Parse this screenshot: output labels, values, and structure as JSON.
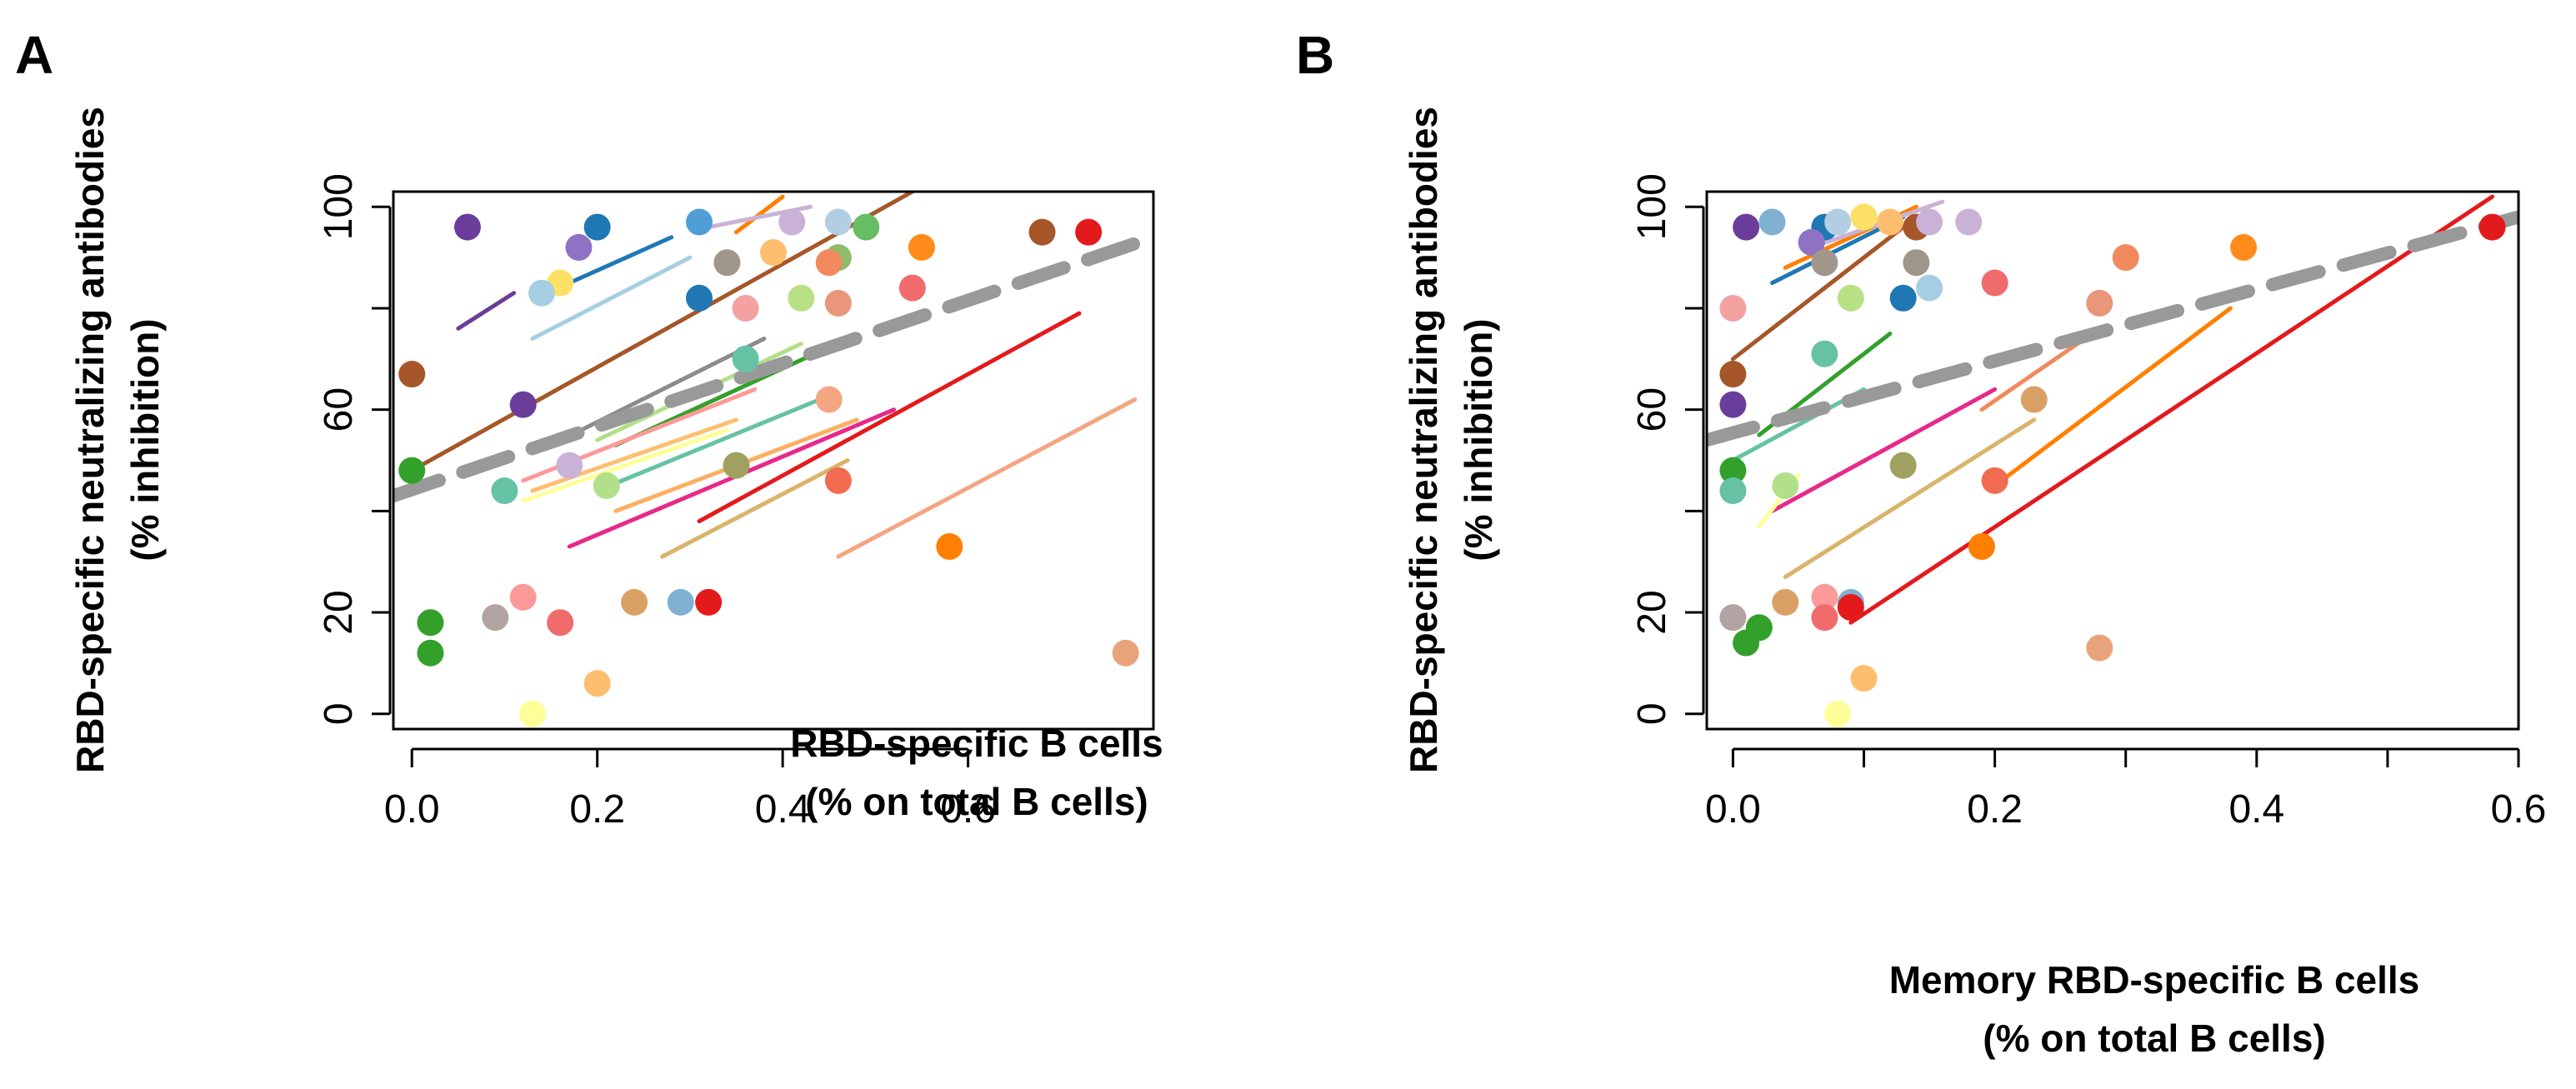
{
  "chart_data": [
    {
      "panel": "A",
      "type": "scatter",
      "xlabel_line1": "RBD-specific B cells",
      "xlabel_line2": "(% on total B cells)",
      "ylabel_line1": "RBD-specific neutralizing antibodies",
      "ylabel_line2": "(% inhibition)",
      "xlim": [
        -0.02,
        0.8
      ],
      "ylim": [
        -3,
        103
      ],
      "xticks": [
        0.0,
        0.2,
        0.4,
        0.6
      ],
      "xtick_labels": [
        "0.0",
        "0.2",
        "0.4",
        "0.6"
      ],
      "xtick_marks": [
        0.0,
        0.2,
        0.4,
        0.6
      ],
      "yticks": [
        0,
        20,
        60,
        100
      ],
      "ytick_labels": [
        "0",
        "20",
        "60",
        "100"
      ],
      "ytick_marks": [
        0,
        20,
        40,
        60,
        80,
        100
      ],
      "overall_fit": {
        "x1": -0.02,
        "y1": 43,
        "x2": 0.8,
        "y2": 94,
        "color": "#999999"
      },
      "fit_lines": [
        {
          "x1": 0.05,
          "y1": 76,
          "x2": 0.11,
          "y2": 83,
          "color": "#6a3d9a"
        },
        {
          "x1": 0.17,
          "y1": 85,
          "x2": 0.28,
          "y2": 94,
          "color": "#1f78b4"
        },
        {
          "x1": 0.13,
          "y1": 74,
          "x2": 0.3,
          "y2": 90,
          "color": "#a6cee3"
        },
        {
          "x1": 0.0,
          "y1": 48,
          "x2": 0.54,
          "y2": 103,
          "color": "#a65628"
        },
        {
          "x1": 0.35,
          "y1": 95,
          "x2": 0.4,
          "y2": 102,
          "color": "#ff7f00"
        },
        {
          "x1": 0.32,
          "y1": 96,
          "x2": 0.43,
          "y2": 100,
          "color": "#cab2d6"
        },
        {
          "x1": 0.15,
          "y1": 53,
          "x2": 0.38,
          "y2": 74,
          "color": "#8c8c8c"
        },
        {
          "x1": 0.2,
          "y1": 54,
          "x2": 0.42,
          "y2": 73,
          "color": "#b2df8a"
        },
        {
          "x1": 0.22,
          "y1": 53,
          "x2": 0.47,
          "y2": 74,
          "color": "#33a02c"
        },
        {
          "x1": 0.12,
          "y1": 46,
          "x2": 0.37,
          "y2": 64,
          "color": "#fb9a99"
        },
        {
          "x1": 0.2,
          "y1": 44,
          "x2": 0.44,
          "y2": 62,
          "color": "#66c2a5"
        },
        {
          "x1": 0.13,
          "y1": 44,
          "x2": 0.35,
          "y2": 58,
          "color": "#fdbf6f"
        },
        {
          "x1": 0.12,
          "y1": 42,
          "x2": 0.34,
          "y2": 56,
          "color": "#ffff99"
        },
        {
          "x1": 0.17,
          "y1": 33,
          "x2": 0.52,
          "y2": 60,
          "color": "#e7298a"
        },
        {
          "x1": 0.22,
          "y1": 40,
          "x2": 0.48,
          "y2": 58,
          "color": "#fdae61"
        },
        {
          "x1": 0.27,
          "y1": 31,
          "x2": 0.47,
          "y2": 50,
          "color": "#d9b46a"
        },
        {
          "x1": 0.31,
          "y1": 38,
          "x2": 0.72,
          "y2": 79,
          "color": "#e31a1c"
        },
        {
          "x1": 0.46,
          "y1": 31,
          "x2": 0.78,
          "y2": 62,
          "color": "#f4a582"
        }
      ],
      "points": [
        {
          "x": 0.06,
          "y": 96,
          "color": "#6a3d9a"
        },
        {
          "x": 0.2,
          "y": 96,
          "color": "#1f78b4"
        },
        {
          "x": 0.31,
          "y": 97,
          "color": "#4f9fd6"
        },
        {
          "x": 0.18,
          "y": 92,
          "color": "#8e72c4"
        },
        {
          "x": 0.16,
          "y": 85,
          "color": "#ffe066"
        },
        {
          "x": 0.14,
          "y": 83,
          "color": "#a6cee3"
        },
        {
          "x": 0.31,
          "y": 82,
          "color": "#1f78b4"
        },
        {
          "x": 0.34,
          "y": 89,
          "color": "#a0968c"
        },
        {
          "x": 0.39,
          "y": 91,
          "color": "#fdbf6f"
        },
        {
          "x": 0.41,
          "y": 97,
          "color": "#cab2d6"
        },
        {
          "x": 0.46,
          "y": 97,
          "color": "#b3cde3"
        },
        {
          "x": 0.46,
          "y": 90,
          "color": "#8fbc6a"
        },
        {
          "x": 0.49,
          "y": 96,
          "color": "#66bd63"
        },
        {
          "x": 0.45,
          "y": 89,
          "color": "#f08a5d"
        },
        {
          "x": 0.36,
          "y": 80,
          "color": "#f4a1a1"
        },
        {
          "x": 0.42,
          "y": 82,
          "color": "#b8e186"
        },
        {
          "x": 0.46,
          "y": 81,
          "color": "#e9967a"
        },
        {
          "x": 0.55,
          "y": 92,
          "color": "#ff8c1a"
        },
        {
          "x": 0.54,
          "y": 84,
          "color": "#f06b6b"
        },
        {
          "x": 0.68,
          "y": 95,
          "color": "#a65628"
        },
        {
          "x": 0.73,
          "y": 95,
          "color": "#e31a1c"
        },
        {
          "x": 0.0,
          "y": 67,
          "color": "#a65628"
        },
        {
          "x": 0.12,
          "y": 61,
          "color": "#6a3d9a"
        },
        {
          "x": 0.36,
          "y": 70,
          "color": "#66c2a5"
        },
        {
          "x": 0.45,
          "y": 62,
          "color": "#f4a582"
        },
        {
          "x": 0.0,
          "y": 48,
          "color": "#33a02c"
        },
        {
          "x": 0.1,
          "y": 44,
          "color": "#66c2a5"
        },
        {
          "x": 0.17,
          "y": 49,
          "color": "#cab2d6"
        },
        {
          "x": 0.21,
          "y": 45,
          "color": "#b2df8a"
        },
        {
          "x": 0.35,
          "y": 49,
          "color": "#a0a060"
        },
        {
          "x": 0.46,
          "y": 46,
          "color": "#f06b4f"
        },
        {
          "x": 0.58,
          "y": 33,
          "color": "#ff7f00"
        },
        {
          "x": 0.12,
          "y": 23,
          "color": "#fb9a99"
        },
        {
          "x": 0.09,
          "y": 19,
          "color": "#b3a3a3"
        },
        {
          "x": 0.02,
          "y": 18,
          "color": "#33a02c"
        },
        {
          "x": 0.02,
          "y": 12,
          "color": "#33a02c"
        },
        {
          "x": 0.16,
          "y": 18,
          "color": "#f06b6b"
        },
        {
          "x": 0.24,
          "y": 22,
          "color": "#d9a066"
        },
        {
          "x": 0.29,
          "y": 22,
          "color": "#80b1d3"
        },
        {
          "x": 0.32,
          "y": 22,
          "color": "#e31a1c"
        },
        {
          "x": 0.2,
          "y": 6,
          "color": "#fdbf6f"
        },
        {
          "x": 0.13,
          "y": 0,
          "color": "#ffff99"
        },
        {
          "x": 0.77,
          "y": 12,
          "color": "#e9a37a"
        }
      ]
    },
    {
      "panel": "B",
      "type": "scatter",
      "xlabel_line1": "Memory RBD-specific B cells",
      "xlabel_line2": "(% on total B cells)",
      "ylabel_line1": "RBD-specific neutralizing antibodies",
      "ylabel_line2": "(% inhibition)",
      "xlim": [
        -0.02,
        0.6
      ],
      "ylim": [
        -3,
        103
      ],
      "xticks": [
        0.0,
        0.2,
        0.4,
        0.6
      ],
      "xtick_labels": [
        "0.0",
        "0.2",
        "0.4",
        "0.6"
      ],
      "xtick_marks": [
        0.0,
        0.1,
        0.2,
        0.3,
        0.4,
        0.5,
        0.6
      ],
      "yticks": [
        0,
        20,
        60,
        100
      ],
      "ytick_labels": [
        "0",
        "20",
        "60",
        "100"
      ],
      "ytick_marks": [
        0,
        20,
        40,
        60,
        80,
        100
      ],
      "overall_fit": {
        "x1": -0.02,
        "y1": 54,
        "x2": 0.6,
        "y2": 98,
        "color": "#999999"
      },
      "fit_lines": [
        {
          "x1": 0.09,
          "y1": 18,
          "x2": 0.58,
          "y2": 102,
          "color": "#e31a1c"
        },
        {
          "x1": 0.2,
          "y1": 45,
          "x2": 0.38,
          "y2": 80,
          "color": "#ff7f00"
        },
        {
          "x1": 0.04,
          "y1": 27,
          "x2": 0.23,
          "y2": 58,
          "color": "#d9b46a"
        },
        {
          "x1": 0.03,
          "y1": 40,
          "x2": 0.2,
          "y2": 64,
          "color": "#e7298a"
        },
        {
          "x1": 0.19,
          "y1": 60,
          "x2": 0.28,
          "y2": 76,
          "color": "#f08a5d"
        },
        {
          "x1": 0.02,
          "y1": 37,
          "x2": 0.05,
          "y2": 47,
          "color": "#ffff99"
        },
        {
          "x1": 0.0,
          "y1": 70,
          "x2": 0.13,
          "y2": 96,
          "color": "#a65628"
        },
        {
          "x1": 0.03,
          "y1": 85,
          "x2": 0.13,
          "y2": 98,
          "color": "#1f78b4"
        },
        {
          "x1": 0.02,
          "y1": 55,
          "x2": 0.12,
          "y2": 75,
          "color": "#33a02c"
        },
        {
          "x1": 0.0,
          "y1": 50,
          "x2": 0.1,
          "y2": 64,
          "color": "#66c2a5"
        },
        {
          "x1": 0.04,
          "y1": 88,
          "x2": 0.14,
          "y2": 100,
          "color": "#ff7f00"
        },
        {
          "x1": 0.06,
          "y1": 92,
          "x2": 0.16,
          "y2": 101,
          "color": "#cab2d6"
        }
      ],
      "points": [
        {
          "x": 0.01,
          "y": 96,
          "color": "#6a3d9a"
        },
        {
          "x": 0.03,
          "y": 97,
          "color": "#80b1d3"
        },
        {
          "x": 0.07,
          "y": 96,
          "color": "#1f78b4"
        },
        {
          "x": 0.08,
          "y": 97,
          "color": "#b3cde3"
        },
        {
          "x": 0.1,
          "y": 98,
          "color": "#ffe066"
        },
        {
          "x": 0.12,
          "y": 97,
          "color": "#fdbf6f"
        },
        {
          "x": 0.14,
          "y": 96,
          "color": "#a65628"
        },
        {
          "x": 0.15,
          "y": 97,
          "color": "#cab2d6"
        },
        {
          "x": 0.18,
          "y": 97,
          "color": "#cab2d6"
        },
        {
          "x": 0.06,
          "y": 93,
          "color": "#8e72c4"
        },
        {
          "x": 0.07,
          "y": 89,
          "color": "#a0968c"
        },
        {
          "x": 0.14,
          "y": 89,
          "color": "#a0968c"
        },
        {
          "x": 0.0,
          "y": 80,
          "color": "#f4a1a1"
        },
        {
          "x": 0.09,
          "y": 82,
          "color": "#b8e186"
        },
        {
          "x": 0.13,
          "y": 82,
          "color": "#1f78b4"
        },
        {
          "x": 0.15,
          "y": 84,
          "color": "#a6cee3"
        },
        {
          "x": 0.2,
          "y": 85,
          "color": "#f06b6b"
        },
        {
          "x": 0.28,
          "y": 81,
          "color": "#e9967a"
        },
        {
          "x": 0.3,
          "y": 90,
          "color": "#f08a5d"
        },
        {
          "x": 0.39,
          "y": 92,
          "color": "#ff8c1a"
        },
        {
          "x": 0.58,
          "y": 96,
          "color": "#e31a1c"
        },
        {
          "x": 0.0,
          "y": 67,
          "color": "#a65628"
        },
        {
          "x": 0.07,
          "y": 71,
          "color": "#66c2a5"
        },
        {
          "x": 0.0,
          "y": 61,
          "color": "#6a3d9a"
        },
        {
          "x": 0.23,
          "y": 62,
          "color": "#d9a066"
        },
        {
          "x": 0.0,
          "y": 48,
          "color": "#33a02c"
        },
        {
          "x": 0.0,
          "y": 44,
          "color": "#66c2a5"
        },
        {
          "x": 0.04,
          "y": 45,
          "color": "#b2df8a"
        },
        {
          "x": 0.13,
          "y": 49,
          "color": "#a0a060"
        },
        {
          "x": 0.2,
          "y": 46,
          "color": "#f06b4f"
        },
        {
          "x": 0.19,
          "y": 33,
          "color": "#ff7f00"
        },
        {
          "x": 0.0,
          "y": 19,
          "color": "#b3a3a3"
        },
        {
          "x": 0.02,
          "y": 17,
          "color": "#33a02c"
        },
        {
          "x": 0.01,
          "y": 14,
          "color": "#33a02c"
        },
        {
          "x": 0.04,
          "y": 22,
          "color": "#d9a066"
        },
        {
          "x": 0.07,
          "y": 23,
          "color": "#fb9a99"
        },
        {
          "x": 0.07,
          "y": 19,
          "color": "#f06b6b"
        },
        {
          "x": 0.09,
          "y": 22,
          "color": "#80b1d3"
        },
        {
          "x": 0.09,
          "y": 21,
          "color": "#e31a1c"
        },
        {
          "x": 0.1,
          "y": 7,
          "color": "#fdbf6f"
        },
        {
          "x": 0.08,
          "y": 0,
          "color": "#ffff99"
        },
        {
          "x": 0.28,
          "y": 13,
          "color": "#e9a37a"
        }
      ]
    }
  ]
}
